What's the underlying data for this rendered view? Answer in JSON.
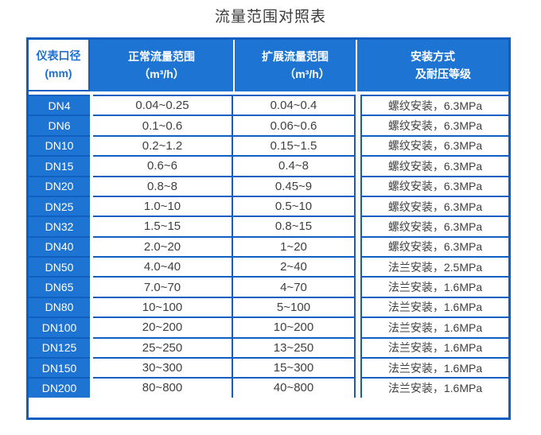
{
  "title": "流量范围对照表",
  "colors": {
    "cell_blue": "#1e74d2",
    "border_blue": "#0f5fc3",
    "header_text": "#ffffff",
    "header_cell1_text": "#1c6fd0",
    "body_text": "#3f3f3f"
  },
  "table": {
    "headers": [
      {
        "line1": "仪表口径",
        "line2": "(mm)"
      },
      {
        "line1": "正常流量范围",
        "line2": "（m³/h）"
      },
      {
        "line1": "扩展流量范围",
        "line2": "（m³/h）"
      },
      {
        "line1": "安装方式",
        "line2": "及耐压等级"
      }
    ],
    "rows": [
      {
        "dn": "DN4",
        "normal": "0.04~0.25",
        "extended": "0.04~0.4",
        "install": "螺纹安装，6.3MPa"
      },
      {
        "dn": "DN6",
        "normal": "0.1~0.6",
        "extended": "0.06~0.6",
        "install": "螺纹安装，6.3MPa"
      },
      {
        "dn": "DN10",
        "normal": "0.2~1.2",
        "extended": "0.15~1.5",
        "install": "螺纹安装，6.3MPa"
      },
      {
        "dn": "DN15",
        "normal": "0.6~6",
        "extended": "0.4~8",
        "install": "螺纹安装，6.3MPa"
      },
      {
        "dn": "DN20",
        "normal": "0.8~8",
        "extended": "0.45~9",
        "install": "螺纹安装，6.3MPa"
      },
      {
        "dn": "DN25",
        "normal": "1.0~10",
        "extended": "0.5~10",
        "install": "螺纹安装，6.3MPa"
      },
      {
        "dn": "DN32",
        "normal": "1.5~15",
        "extended": "0.8~15",
        "install": "螺纹安装，6.3MPa"
      },
      {
        "dn": "DN40",
        "normal": "2.0~20",
        "extended": "1~20",
        "install": "螺纹安装，6.3MPa"
      },
      {
        "dn": "DN50",
        "normal": "4.0~40",
        "extended": "2~40",
        "install": "法兰安装，2.5MPa"
      },
      {
        "dn": "DN65",
        "normal": "7.0~70",
        "extended": "4~70",
        "install": "法兰安装，1.6MPa"
      },
      {
        "dn": "DN80",
        "normal": "10~100",
        "extended": "5~100",
        "install": "法兰安装，1.6MPa"
      },
      {
        "dn": "DN100",
        "normal": "20~200",
        "extended": "10~200",
        "install": "法兰安装，1.6MPa"
      },
      {
        "dn": "DN125",
        "normal": "25~250",
        "extended": "13~250",
        "install": "法兰安装，1.6MPa"
      },
      {
        "dn": "DN150",
        "normal": "30~300",
        "extended": "15~300",
        "install": "法兰安装，1.6MPa"
      },
      {
        "dn": "DN200",
        "normal": "80~800",
        "extended": "40~800",
        "install": "法兰安装，1.6MPa"
      }
    ]
  }
}
